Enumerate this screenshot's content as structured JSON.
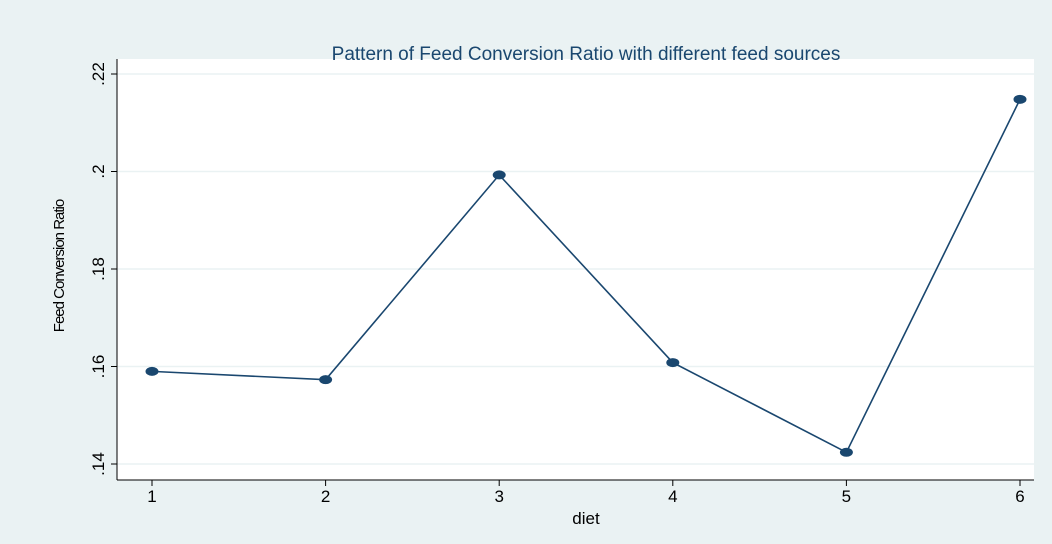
{
  "chart_data": {
    "type": "line",
    "title": "Pattern of Feed Conversion Ratio with different feed sources",
    "xlabel": "diet",
    "ylabel": "Feed Conversion Ratio",
    "x": [
      1,
      2,
      3,
      4,
      5,
      6
    ],
    "x_tick_labels": [
      "1",
      "2",
      "3",
      "4",
      "5",
      "6"
    ],
    "y_tick_labels": [
      ".14",
      ".16",
      ".18",
      ".2",
      ".22"
    ],
    "y_ticks": [
      0.14,
      0.16,
      0.18,
      0.2,
      0.22
    ],
    "ylim": [
      0.14,
      0.22
    ],
    "xlim": [
      1,
      6
    ],
    "grid": true,
    "series": [
      {
        "values": [
          0.159,
          0.1573,
          0.1993,
          0.1608,
          0.1424,
          0.2148
        ]
      }
    ],
    "colors": {
      "line": "#1a476f",
      "marker": "#1a476f",
      "plot_bg": "#ffffff",
      "outer_bg": "#eaf2f3",
      "grid": "#eaf2f3"
    }
  }
}
